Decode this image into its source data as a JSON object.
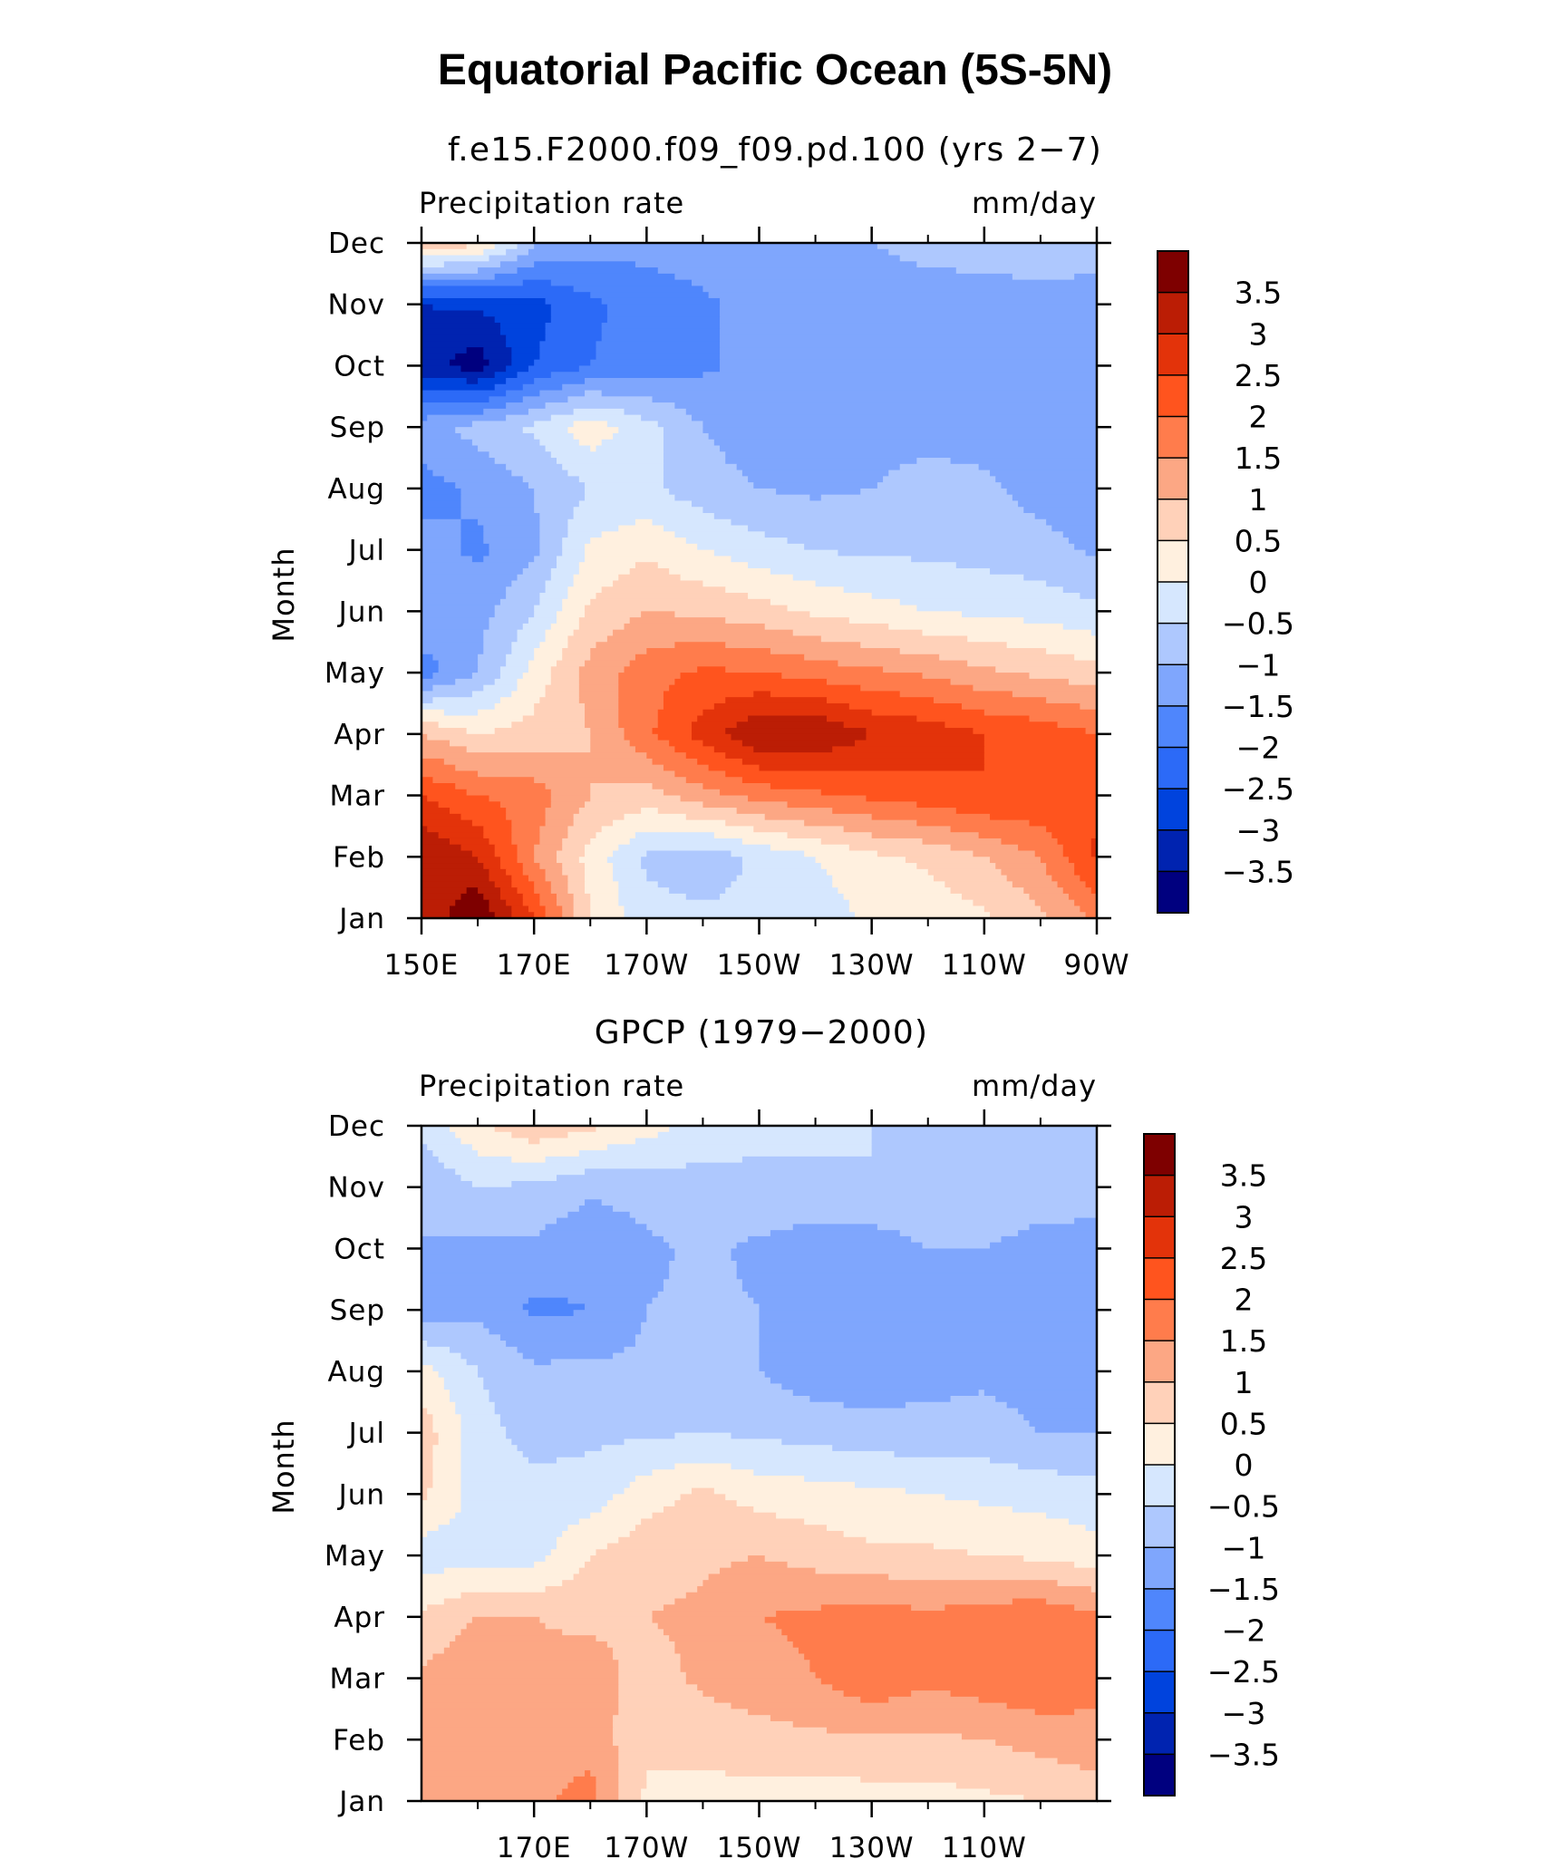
{
  "figure": {
    "title": "Equatorial Pacific Ocean (5S-5N)"
  },
  "colors": [
    "#00007f",
    "#0023b0",
    "#0043dd",
    "#2c6af7",
    "#4f86fc",
    "#7fa6fd",
    "#aec8fe",
    "#d6e7fe",
    "#fff0df",
    "#ffd1b9",
    "#fca784",
    "#ff7c4c",
    "#ff541e",
    "#e3330a",
    "#bb1d05",
    "#7e0000"
  ],
  "chart_data": [
    {
      "type": "heatmap",
      "title": "f.e15.F2000.f09_f09.pd.100 (yrs 2−7)",
      "left_label": "Precipitation rate",
      "right_label": "mm/day",
      "ylabel": "Month",
      "xlabel": "",
      "xlim": [
        150,
        270
      ],
      "x_ticks": [
        150,
        170,
        190,
        210,
        230,
        250,
        270
      ],
      "x_tick_labels": [
        "150E",
        "170E",
        "170W",
        "150W",
        "130W",
        "110W",
        "90W"
      ],
      "y_tick_labels": [
        "Jan",
        "Feb",
        "Mar",
        "Apr",
        "May",
        "Jun",
        "Jul",
        "Aug",
        "Sep",
        "Oct",
        "Nov",
        "Dec"
      ],
      "levels": [
        -3.5,
        -3,
        -2.5,
        -2,
        -1.5,
        -1,
        -0.5,
        0,
        0.5,
        1,
        1.5,
        2,
        2.5,
        3,
        3.5
      ],
      "colorbar_labels": [
        "−3.5",
        "−3",
        "−2.5",
        "−2",
        "−1.5",
        "−1",
        "−0.5",
        "0",
        "0.5",
        "1",
        "1.5",
        "2",
        "2.5",
        "3",
        "3.5"
      ],
      "x": [
        150,
        160,
        170,
        180,
        190,
        200,
        210,
        220,
        230,
        240,
        250,
        260,
        270
      ],
      "months": [
        "Jan",
        "Feb",
        "Mar",
        "Apr",
        "May",
        "Jun",
        "Jul",
        "Aug",
        "Sep",
        "Oct",
        "Nov",
        "Dec"
      ],
      "values": [
        [
          3.0,
          4.0,
          2.5,
          0.5,
          -0.3,
          -0.4,
          -0.4,
          -0.3,
          0.1,
          0.2,
          0.4,
          0.9,
          1.6
        ],
        [
          3.5,
          3.0,
          1.5,
          0.3,
          -0.6,
          -0.8,
          -0.4,
          0.0,
          0.4,
          0.6,
          1.0,
          1.5,
          2.6
        ],
        [
          2.5,
          2.0,
          1.8,
          1.0,
          0.8,
          1.3,
          1.7,
          1.9,
          2.1,
          2.3,
          2.5,
          2.5,
          2.4
        ],
        [
          1.0,
          0.5,
          0.7,
          1.0,
          1.9,
          2.7,
          3.5,
          3.5,
          3.0,
          2.8,
          2.5,
          2.3,
          2.0
        ],
        [
          -1.8,
          -1.0,
          0.2,
          1.2,
          1.8,
          2.1,
          2.0,
          1.8,
          1.6,
          1.4,
          1.1,
          0.9,
          0.7
        ],
        [
          -1.0,
          -1.2,
          -0.5,
          0.6,
          1.0,
          0.9,
          0.7,
          0.4,
          0.2,
          0.0,
          -0.1,
          -0.2,
          -0.4
        ],
        [
          -1.3,
          -1.6,
          -1.1,
          0.1,
          0.4,
          0.0,
          -0.3,
          -0.5,
          -0.6,
          -0.6,
          -0.7,
          -0.8,
          -1.1
        ],
        [
          -1.7,
          -1.4,
          -1.0,
          -0.5,
          -0.4,
          -0.8,
          -1.0,
          -1.1,
          -1.0,
          -0.8,
          -0.9,
          -1.2,
          -1.4
        ],
        [
          -1.2,
          -0.8,
          -0.4,
          0.3,
          -0.3,
          -1.0,
          -1.3,
          -1.3,
          -1.2,
          -1.2,
          -1.2,
          -1.3,
          -1.4
        ],
        [
          -3.3,
          -3.8,
          -2.5,
          -2.0,
          -1.8,
          -1.6,
          -1.3,
          -1.3,
          -1.3,
          -1.3,
          -1.3,
          -1.3,
          -1.3
        ],
        [
          -3.0,
          -2.9,
          -2.7,
          -2.1,
          -1.8,
          -1.6,
          -1.3,
          -1.3,
          -1.3,
          -1.3,
          -1.3,
          -1.2,
          -1.2
        ],
        [
          1.0,
          0.6,
          -0.9,
          -1.3,
          -1.3,
          -1.2,
          -1.1,
          -1.0,
          -1.0,
          -0.8,
          -0.7,
          -0.7,
          -0.8
        ]
      ]
    },
    {
      "type": "heatmap",
      "title": "GPCP (1979−2000)",
      "left_label": "Precipitation rate",
      "right_label": "mm/day",
      "ylabel": "Month",
      "xlabel": "",
      "xlim": [
        150,
        270
      ],
      "x_ticks": [
        170,
        190,
        210,
        230,
        250
      ],
      "x_tick_labels": [
        "170E",
        "170W",
        "150W",
        "130W",
        "110W"
      ],
      "y_tick_labels": [
        "Jan",
        "Feb",
        "Mar",
        "Apr",
        "May",
        "Jun",
        "Jul",
        "Aug",
        "Sep",
        "Oct",
        "Nov",
        "Dec"
      ],
      "levels": [
        -3.5,
        -3,
        -2.5,
        -2,
        -1.5,
        -1,
        -0.5,
        0,
        0.5,
        1,
        1.5,
        2,
        2.5,
        3,
        3.5
      ],
      "colorbar_labels": [
        "−3.5",
        "−3",
        "−2.5",
        "−2",
        "−1.5",
        "−1",
        "−0.5",
        "0",
        "0.5",
        "1",
        "1.5",
        "2",
        "2.5",
        "3",
        "3.5"
      ],
      "x": [
        150,
        160,
        170,
        180,
        190,
        200,
        210,
        220,
        230,
        240,
        250,
        260,
        270
      ],
      "months": [
        "Jan",
        "Feb",
        "Mar",
        "Apr",
        "May",
        "Jun",
        "Jul",
        "Aug",
        "Sep",
        "Oct",
        "Nov",
        "Dec"
      ],
      "values": [
        [
          1.0,
          1.3,
          1.4,
          1.7,
          0.4,
          0.3,
          0.3,
          0.2,
          0.3,
          0.3,
          0.4,
          0.5,
          0.6
        ],
        [
          1.3,
          1.5,
          1.3,
          1.3,
          0.6,
          0.7,
          0.8,
          0.9,
          0.9,
          0.9,
          1.0,
          1.2,
          1.4
        ],
        [
          1.1,
          1.4,
          1.1,
          1.2,
          0.8,
          1.1,
          1.3,
          1.5,
          1.9,
          1.6,
          1.8,
          1.9,
          1.6
        ],
        [
          0.6,
          1.0,
          1.0,
          0.9,
          1.0,
          1.1,
          1.5,
          1.6,
          1.8,
          1.6,
          1.8,
          1.9,
          1.6
        ],
        [
          -0.3,
          -0.2,
          -0.2,
          0.5,
          0.8,
          0.9,
          1.0,
          0.8,
          0.6,
          0.6,
          0.5,
          0.4,
          0.2
        ],
        [
          0.6,
          -0.2,
          -0.3,
          -0.3,
          0.3,
          0.6,
          0.3,
          0.2,
          0.1,
          0.0,
          -0.1,
          -0.2,
          -0.3
        ],
        [
          0.8,
          -0.3,
          -0.7,
          -0.6,
          -0.6,
          -0.5,
          -0.6,
          -0.7,
          -0.8,
          -0.8,
          -0.8,
          -1.0,
          -1.0
        ],
        [
          0.2,
          -0.5,
          -0.9,
          -0.9,
          -0.9,
          -0.9,
          -1.0,
          -1.3,
          -1.3,
          -1.2,
          -1.1,
          -1.2,
          -1.4
        ],
        [
          -1.3,
          -1.1,
          -1.6,
          -1.5,
          -1.0,
          -0.9,
          -1.0,
          -1.3,
          -1.5,
          -1.3,
          -1.0,
          -1.3,
          -1.4
        ],
        [
          -1.0,
          -1.1,
          -1.1,
          -1.4,
          -1.1,
          -0.9,
          -1.1,
          -1.3,
          -1.3,
          -1.0,
          -1.0,
          -1.2,
          -1.2
        ],
        [
          -1.0,
          -0.5,
          -0.6,
          -0.9,
          -0.8,
          -0.7,
          -0.6,
          -0.6,
          -0.5,
          -0.6,
          -0.6,
          -0.7,
          -0.8
        ],
        [
          -0.3,
          0.4,
          0.9,
          0.6,
          0.2,
          -0.2,
          -0.4,
          -0.4,
          -0.5,
          -0.5,
          -0.5,
          -0.5,
          -0.5
        ]
      ]
    }
  ]
}
